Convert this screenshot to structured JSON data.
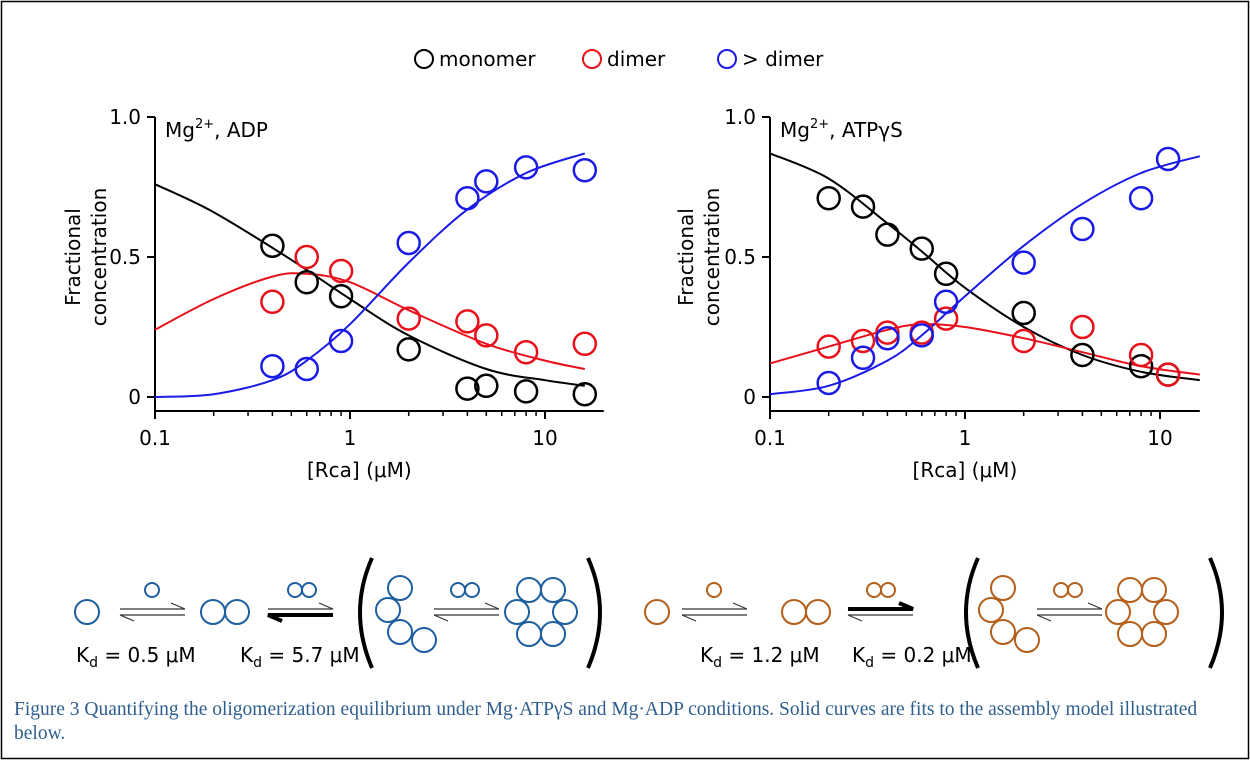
{
  "legend": [
    {
      "name": "monomer",
      "color": "#000000"
    },
    {
      "name": "dimer",
      "color": "#e8101a"
    },
    {
      "name": "> dimer",
      "color": "#1a1ae6"
    }
  ],
  "chart_data": [
    {
      "type": "scatter",
      "annotation": {
        "base": "Mg",
        "sup": "2+",
        "rest": ", ADP"
      },
      "ylabel": [
        "Fractional",
        "concentration"
      ],
      "xlabel": "[Rca] (μM)",
      "xscale": "log",
      "xlim": [
        0.1,
        20
      ],
      "xticks": [
        0.1,
        1,
        10
      ],
      "ylim": [
        -0.05,
        1
      ],
      "yticks": [
        0,
        0.5,
        {
          "value": 1,
          "label": "1.0"
        }
      ],
      "series": [
        {
          "color": "#000000",
          "x": [
            0.4,
            0.6,
            0.9,
            2,
            4,
            5,
            8,
            16
          ],
          "values": [
            0.54,
            0.41,
            0.36,
            0.17,
            0.03,
            0.04,
            0.02,
            0.01
          ],
          "fit": {
            "x": [
              0.1,
              0.2,
              0.5,
              1,
              2,
              5,
              10,
              16
            ],
            "values": [
              0.76,
              0.66,
              0.49,
              0.35,
              0.22,
              0.1,
              0.06,
              0.04
            ]
          }
        },
        {
          "color": "#e8101a",
          "x": [
            0.4,
            0.6,
            0.9,
            2,
            4,
            5,
            8,
            16
          ],
          "values": [
            0.34,
            0.5,
            0.45,
            0.28,
            0.27,
            0.22,
            0.16,
            0.19
          ],
          "fit": {
            "x": [
              0.1,
              0.2,
              0.4,
              0.6,
              1,
              2,
              5,
              10,
              16
            ],
            "values": [
              0.24,
              0.35,
              0.43,
              0.44,
              0.41,
              0.31,
              0.19,
              0.13,
              0.1
            ]
          }
        },
        {
          "color": "#1a1ae6",
          "x": [
            0.4,
            0.6,
            0.9,
            2,
            4,
            5,
            8,
            16
          ],
          "values": [
            0.11,
            0.1,
            0.2,
            0.55,
            0.71,
            0.77,
            0.82,
            0.81
          ],
          "fit": {
            "x": [
              0.1,
              0.2,
              0.4,
              0.6,
              1,
              2,
              4,
              8,
              16
            ],
            "values": [
              0,
              0.01,
              0.06,
              0.13,
              0.26,
              0.48,
              0.67,
              0.8,
              0.87
            ]
          }
        }
      ]
    },
    {
      "type": "scatter",
      "annotation": {
        "base": "Mg",
        "sup": "2+",
        "rest": ", ATPγS"
      },
      "ylabel": [
        "Fractional",
        "concentration"
      ],
      "xlabel": "[Rca] (μM)",
      "xscale": "log",
      "xlim": [
        0.1,
        16
      ],
      "xticks": [
        0.1,
        1,
        10
      ],
      "ylim": [
        -0.05,
        1
      ],
      "yticks": [
        0,
        0.5,
        {
          "value": 1,
          "label": "1.0"
        }
      ],
      "series": [
        {
          "color": "#000000",
          "x": [
            0.2,
            0.3,
            0.4,
            0.6,
            0.8,
            2,
            4,
            8,
            11
          ],
          "values": [
            0.71,
            0.68,
            0.58,
            0.53,
            0.44,
            0.3,
            0.15,
            0.11,
            0.08
          ],
          "fit": {
            "x": [
              0.1,
              0.2,
              0.4,
              0.6,
              1,
              2,
              4,
              8,
              16
            ],
            "values": [
              0.87,
              0.78,
              0.62,
              0.52,
              0.39,
              0.25,
              0.15,
              0.09,
              0.06
            ]
          }
        },
        {
          "color": "#e8101a",
          "x": [
            0.2,
            0.3,
            0.4,
            0.6,
            0.8,
            2,
            4,
            8,
            11
          ],
          "values": [
            0.18,
            0.2,
            0.23,
            0.23,
            0.28,
            0.2,
            0.25,
            0.15,
            0.08
          ],
          "fit": {
            "x": [
              0.1,
              0.2,
              0.4,
              0.6,
              1,
              2,
              4,
              8,
              16
            ],
            "values": [
              0.12,
              0.18,
              0.24,
              0.26,
              0.25,
              0.21,
              0.16,
              0.11,
              0.08
            ]
          }
        },
        {
          "color": "#1a1ae6",
          "x": [
            0.2,
            0.3,
            0.4,
            0.6,
            0.8,
            2,
            4,
            8,
            11
          ],
          "values": [
            0.05,
            0.14,
            0.21,
            0.22,
            0.34,
            0.48,
            0.6,
            0.71,
            0.85
          ],
          "fit": {
            "x": [
              0.1,
              0.2,
              0.4,
              0.6,
              1,
              2,
              4,
              8,
              16
            ],
            "values": [
              0.01,
              0.04,
              0.13,
              0.22,
              0.36,
              0.54,
              0.69,
              0.8,
              0.86
            ]
          }
        }
      ]
    }
  ],
  "diagram": {
    "left": {
      "kd": [
        {
          "base": "K",
          "sub": "d",
          "rest": " = 0.5 μM"
        },
        {
          "base": "K",
          "sub": "d",
          "rest": " = 5.7 μM"
        }
      ]
    },
    "right": {
      "kd": [
        {
          "base": "K",
          "sub": "d",
          "rest": " = 1.2 μM"
        },
        {
          "base": "K",
          "sub": "d",
          "rest": " = 0.2 μM"
        }
      ]
    }
  },
  "caption": "Figure 3 Quantifying the oligomerization equilibrium under Mg·ATPγS and Mg·ADP conditions. Solid curves are fits to the assembly model illustrated below."
}
